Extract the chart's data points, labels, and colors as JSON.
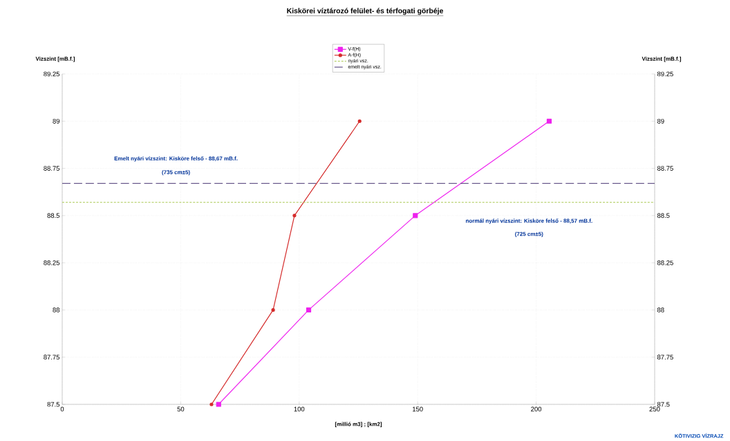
{
  "chart_data": {
    "type": "line",
    "title": "Kiskörei víztározó felület- és térfogati görbéje",
    "xlabel": "[millió  m3] ; [km2]",
    "ylabel": "Vizszint [mB.f.]",
    "y2label": "Vizszint [mB.f.]",
    "series": [
      {
        "name": "V-f(H)",
        "color": "#ee22ee",
        "marker": "square",
        "line_style": "solid",
        "x": [
          66,
          104,
          149,
          205.5
        ],
        "values": [
          87.5,
          88,
          88.5,
          89
        ]
      },
      {
        "name": "A-f(H)",
        "color": "#d42a2a",
        "marker": "circle",
        "line_style": "solid",
        "x": [
          63,
          89,
          98,
          125.5
        ],
        "values": [
          87.5,
          88,
          88.5,
          89
        ]
      },
      {
        "name": "nyári vsz.",
        "color": "#a8c850",
        "marker": "none",
        "line_style": "dotted",
        "x": [
          0,
          250
        ],
        "values": [
          88.57,
          88.57
        ]
      },
      {
        "name": "emelt nyári vsz.",
        "color": "#6a5a8c",
        "marker": "none",
        "line_style": "dashed",
        "x": [
          0,
          250
        ],
        "values": [
          88.67,
          88.67
        ]
      }
    ],
    "xlim": [
      0,
      250
    ],
    "xticks": [
      0,
      50,
      100,
      150,
      200,
      250
    ],
    "ylim": [
      87.5,
      89.25
    ],
    "yticks": [
      87.5,
      87.75,
      88,
      88.25,
      88.5,
      88.75,
      89,
      89.25
    ],
    "y2lim": [
      87.5,
      89.25
    ],
    "y2ticks": [
      87.5,
      87.75,
      88,
      88.25,
      88.5,
      88.75,
      89,
      89.25
    ],
    "grid": true,
    "legend": "top",
    "annotations": [
      "Emelt nyári vízszint: Kisköre felső - 88,67 mB.f.",
      "(735 cm±5)",
      "normál nyári vízszint: Kisköre felső - 88,57 mB.f.",
      "(725 cm±5)",
      "KÖTIVIZIG VÍZRAJZ"
    ]
  }
}
